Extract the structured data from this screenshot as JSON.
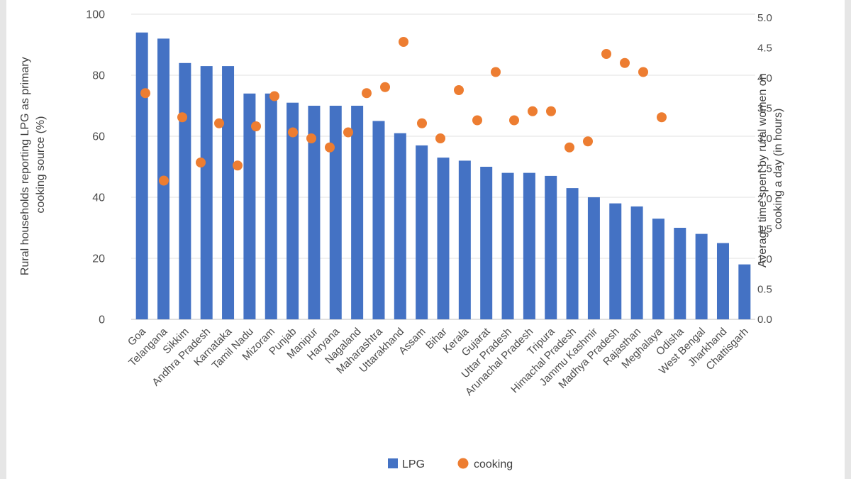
{
  "page": {
    "background": "#ffffff",
    "edge_band_color": "#e6e6e6"
  },
  "chart_data": {
    "type": "combo (bar + scatter)",
    "categories": [
      "Goa",
      "Telangana",
      "Sikkim",
      "Andhra Pradesh",
      "Karnataka",
      "Tamil Nadu",
      "Mizoram",
      "Punjab",
      "Manipur",
      "Haryana",
      "Nagaland",
      "Maharashtra",
      "Uttarakhand",
      "Assam",
      "Bihar",
      "Kerala",
      "Gujarat",
      "Uttar Pradesh",
      "Arunachal Pradesh",
      "Tripura",
      "Himachal Pradesh",
      "Jammu Kashmir",
      "Madhya Pradesh",
      "Rajasthan",
      "Meghalaya",
      "Odisha",
      "West Bengal",
      "Jharkhand",
      "Chattisgarh"
    ],
    "series": [
      {
        "name": "LPG",
        "type": "bar",
        "axis": "left",
        "color": "#4472C4",
        "values": [
          94,
          92,
          84,
          83,
          83,
          74,
          74,
          71,
          70,
          70,
          70,
          65,
          61,
          57,
          53,
          52,
          50,
          48,
          48,
          47,
          43,
          40,
          38,
          37,
          33,
          30,
          28,
          25,
          18
        ]
      },
      {
        "name": "cooking",
        "type": "scatter",
        "axis": "right",
        "color": "#ED7D31",
        "values": [
          3.75,
          2.3,
          3.35,
          2.6,
          3.25,
          2.55,
          3.2,
          3.7,
          3.1,
          3.0,
          2.85,
          3.1,
          3.75,
          3.85,
          4.6,
          3.25,
          3.0,
          3.8,
          3.3,
          4.1,
          3.3,
          3.45,
          3.45,
          2.85,
          2.95,
          4.4,
          4.25,
          4.1,
          3.35
        ]
      }
    ],
    "left_axis": {
      "title": "Rural households reporting LPG as primary cooking source (%)",
      "title_lines": [
        "Rural households reporting LPG as primary",
        "cooking source (%)"
      ],
      "min": 0,
      "max": 100,
      "ticks": [
        0,
        20,
        40,
        60,
        80,
        100
      ]
    },
    "right_axis": {
      "title": "Average time spent by rural women on cooking a day (in hours)",
      "title_lines": [
        "Average time spent by rural women on",
        "cooking a day (in hours)"
      ],
      "min": 0,
      "max": 5,
      "ticks": [
        0,
        0.5,
        1,
        1.5,
        2,
        2.5,
        3,
        3.5,
        4,
        4.5,
        5
      ],
      "tick_labels": [
        "0.0",
        "0.5",
        "1.0",
        "1.5",
        "2.0",
        "2.5",
        "3.0",
        "3.5",
        "4.0",
        "4.5",
        "5.0"
      ]
    },
    "legend": [
      {
        "label": "LPG",
        "marker": "square",
        "color": "#4472C4"
      },
      {
        "label": "cooking",
        "marker": "circle",
        "color": "#ED7D31"
      }
    ],
    "legend_position": "bottom",
    "grid": true
  }
}
